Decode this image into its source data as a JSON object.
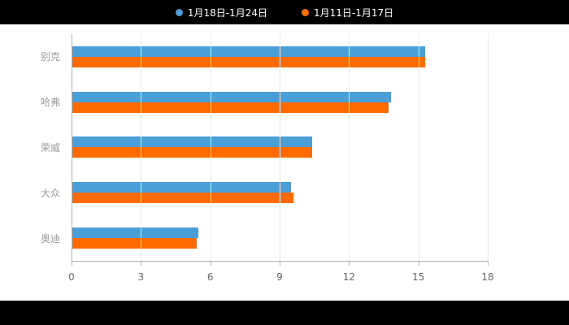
{
  "legend": {
    "items": [
      {
        "label": "1月18日-1月24日",
        "color": "#4A9FD8"
      },
      {
        "label": "1月11日-1月17日",
        "color": "#FF6A00"
      }
    ]
  },
  "chart_data": {
    "type": "bar",
    "orientation": "horizontal",
    "title": "",
    "xlabel": "",
    "ylabel": "",
    "categories": [
      "别克",
      "哈弗",
      "荣威",
      "大众",
      "奥迪"
    ],
    "series": [
      {
        "name": "1月18日-1月24日",
        "color": "#4A9FD8",
        "values": [
          15.3,
          13.8,
          10.4,
          9.5,
          5.5
        ]
      },
      {
        "name": "1月11日-1月17日",
        "color": "#FF6A00",
        "values": [
          15.3,
          13.7,
          10.4,
          9.6,
          5.4
        ]
      }
    ],
    "xlim": [
      0,
      18
    ],
    "xticks": [
      0,
      3,
      6,
      9,
      12,
      15,
      18
    ],
    "grid": true,
    "legend_position": "top-center",
    "background": "#000000",
    "plot_background": "#ffffff"
  }
}
